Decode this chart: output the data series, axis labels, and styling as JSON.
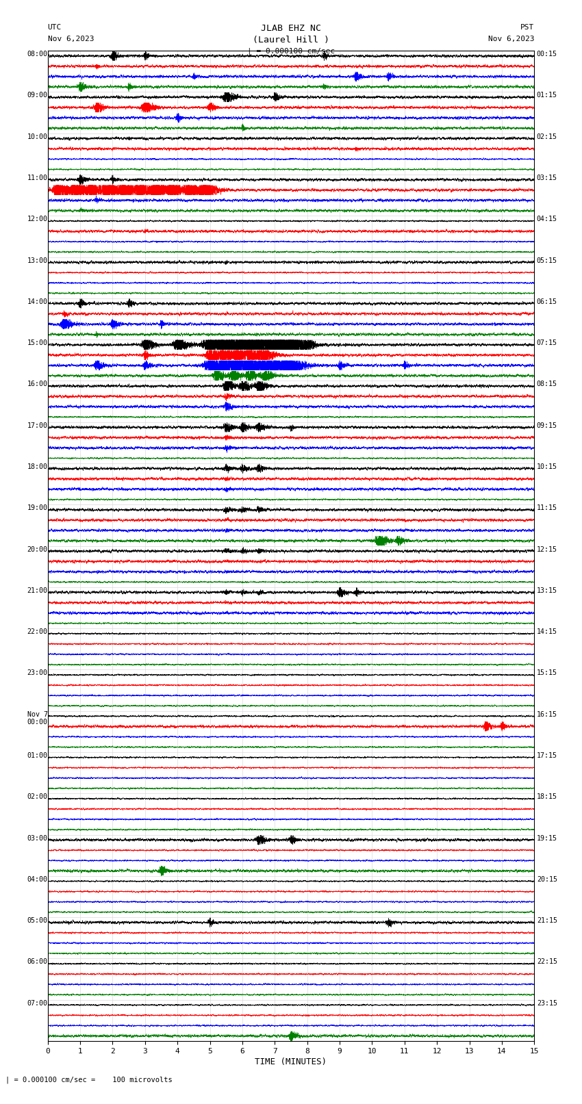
{
  "title_line1": "JLAB EHZ NC",
  "title_line2": "(Laurel Hill )",
  "scale_label": "| = 0.000100 cm/sec",
  "left_header": "UTC",
  "left_date": "Nov 6,2023",
  "right_header": "PST",
  "right_date": "Nov 6,2023",
  "xlabel": "TIME (MINUTES)",
  "footer": "| = 0.000100 cm/sec =    100 microvolts",
  "colors": [
    "black",
    "red",
    "blue",
    "green"
  ],
  "bg_color": "white",
  "x_min": 0,
  "x_max": 15,
  "x_ticks": [
    0,
    1,
    2,
    3,
    4,
    5,
    6,
    7,
    8,
    9,
    10,
    11,
    12,
    13,
    14,
    15
  ],
  "utc_hour_labels": [
    "08:00",
    "09:00",
    "10:00",
    "11:00",
    "12:00",
    "13:00",
    "14:00",
    "15:00",
    "16:00",
    "17:00",
    "18:00",
    "19:00",
    "20:00",
    "21:00",
    "22:00",
    "23:00",
    "Nov 7\n00:00",
    "01:00",
    "02:00",
    "03:00",
    "04:00",
    "05:00",
    "06:00",
    "07:00"
  ],
  "pst_hour_labels": [
    "00:15",
    "01:15",
    "02:15",
    "03:15",
    "04:15",
    "05:15",
    "06:15",
    "07:15",
    "08:15",
    "09:15",
    "10:15",
    "11:15",
    "12:15",
    "13:15",
    "14:15",
    "15:15",
    "16:15",
    "17:15",
    "18:15",
    "19:15",
    "20:15",
    "21:15",
    "22:15",
    "23:15"
  ],
  "n_hours": 24,
  "traces_per_hour": 4,
  "noise_seed": 12345
}
